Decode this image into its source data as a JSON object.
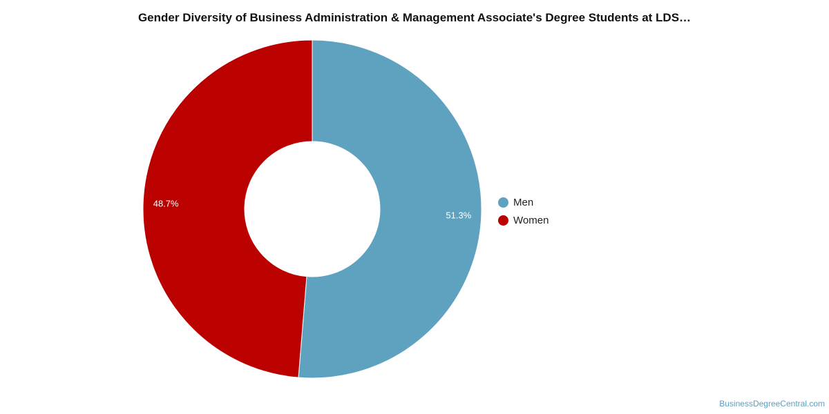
{
  "chart_data": {
    "type": "pie",
    "title": "Gender Diversity of Business Administration & Management Associate's Degree Students at LDS…",
    "donut": true,
    "slices": [
      {
        "name": "Men",
        "value": 51.3,
        "label": "51.3%",
        "color": "#5ea2bf"
      },
      {
        "name": "Women",
        "value": 48.7,
        "label": "48.7%",
        "color": "#bb0000"
      }
    ],
    "legend": {
      "placement": "right",
      "items": [
        {
          "label": "Men",
          "color": "#5ea2bf"
        },
        {
          "label": "Women",
          "color": "#bb0000"
        }
      ]
    }
  },
  "watermark": "BusinessDegreeCentral.com"
}
